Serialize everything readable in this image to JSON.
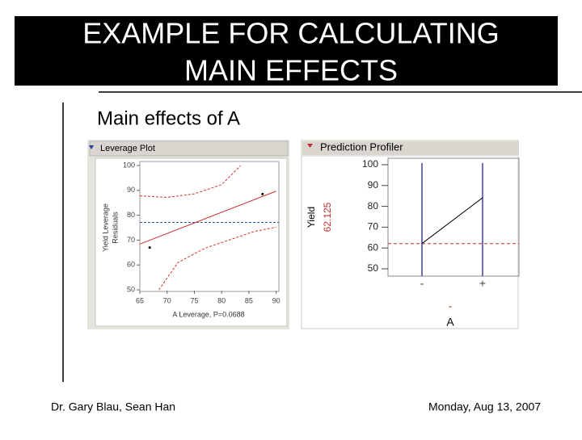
{
  "title_lines": [
    "EXAMPLE FOR CALCULATING",
    "MAIN EFFECTS"
  ],
  "subtitle": "Main effects of A",
  "footer": {
    "left": "Dr. Gary Blau, Sean Han",
    "right": "Monday, Aug 13, 2007"
  },
  "chart_data": [
    {
      "type": "scatter",
      "title": "Leverage Plot",
      "xlabel": "A Leverage, P=0.0688",
      "ylabel": [
        "Yield Leverage",
        "Residuals"
      ],
      "xlim": [
        65,
        90.5
      ],
      "xticks": [
        65,
        70,
        75,
        80,
        85,
        90
      ],
      "ylim": [
        50,
        100
      ],
      "yticks": [
        50,
        60,
        70,
        80,
        90,
        100
      ],
      "points": {
        "x": [
          66.8,
          87.5
        ],
        "y": [
          67,
          88.5
        ]
      },
      "fit": {
        "x": [
          65,
          90
        ],
        "y": [
          68.4,
          89.7
        ],
        "color": "#d03030"
      },
      "mean": 77.1,
      "mean_color": "#3050b0",
      "upper": {
        "x": [
          65,
          70,
          75,
          80,
          83.5
        ],
        "y": [
          87.8,
          87.2,
          88.6,
          92.3,
          100
        ],
        "color": "#d03030"
      },
      "lower": {
        "x": [
          68.5,
          72,
          77,
          82,
          86,
          90
        ],
        "y": [
          50,
          61,
          66.8,
          70.5,
          73.5,
          75.2
        ],
        "color": "#d03030"
      }
    },
    {
      "type": "line",
      "title": "Prediction Profiler",
      "ylabel": "Yield",
      "current_value": 62.125,
      "xlabel": "A",
      "current_setting": "-",
      "categories": [
        "-",
        "+"
      ],
      "values": [
        62.125,
        84.125
      ],
      "color": "#000000",
      "ref_color": "#c03030",
      "bound_color": "#4040a0",
      "ylim": [
        46.5,
        103.1
      ],
      "yticks": [
        50,
        60,
        70,
        80,
        90,
        100
      ]
    }
  ]
}
